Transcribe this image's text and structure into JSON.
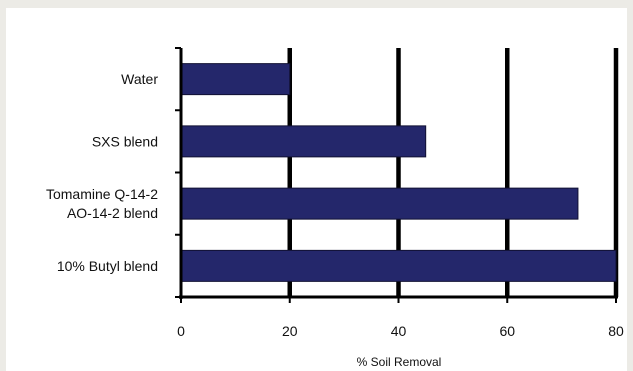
{
  "chart_data": {
    "type": "bar",
    "orientation": "horizontal",
    "categories": [
      "Water",
      "SXS blend",
      "Tomamine Q-14-2\nAO-14-2 blend",
      "10% Butyl blend"
    ],
    "values": [
      20,
      45,
      73,
      80
    ],
    "xlabel": "% Soil Removal",
    "ylabel": "",
    "title": "",
    "xlim": [
      0,
      80
    ],
    "xticks": [
      0,
      20,
      40,
      60,
      80
    ],
    "grid": "vertical lines at major ticks",
    "bar_color": "#24276b",
    "grid_color": "#000000"
  }
}
